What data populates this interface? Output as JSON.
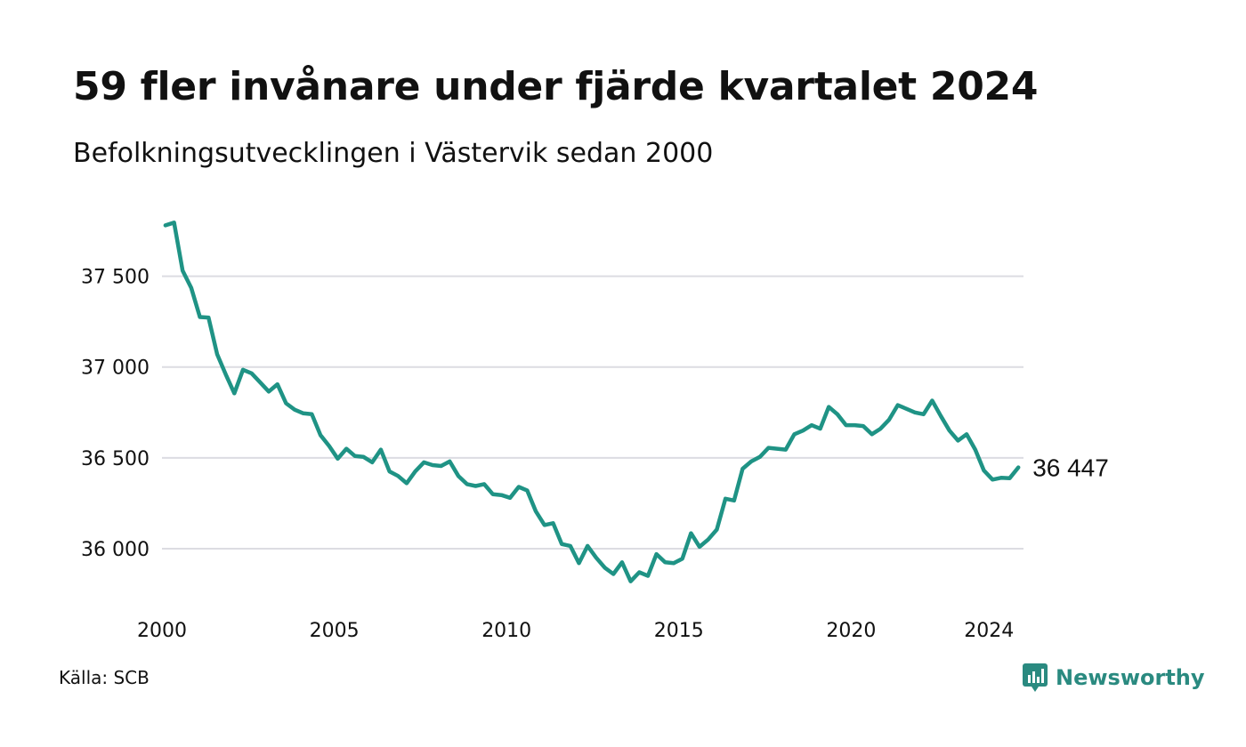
{
  "title": "59 fler invånare under fjärde kvartalet 2024",
  "subtitle": "Befolkningsutvecklingen i Västervik sedan 2000",
  "source": "Källa: SCB",
  "brand": {
    "name": "Newsworthy",
    "icon": "newsworthy-logo-icon",
    "color": "#2a8a80"
  },
  "chart_data": {
    "type": "line",
    "title": "59 fler invånare under fjärde kvartalet 2024",
    "subtitle": "Befolkningsutvecklingen i Västervik sedan 2000",
    "xlabel": "",
    "ylabel": "",
    "xlim": [
      2000,
      2025
    ],
    "ylim": [
      35750,
      37870
    ],
    "grid": "horizontal",
    "line_color": "#1f9385",
    "grid_color": "#dcdce2",
    "x_ticks": [
      {
        "value": 2000,
        "label": "2000"
      },
      {
        "value": 2005,
        "label": "2005"
      },
      {
        "value": 2010,
        "label": "2010"
      },
      {
        "value": 2015,
        "label": "2015"
      },
      {
        "value": 2020,
        "label": "2020"
      },
      {
        "value": 2024,
        "label": "2024"
      }
    ],
    "y_ticks": [
      {
        "value": 36000,
        "label": "36 000"
      },
      {
        "value": 36500,
        "label": "36 500"
      },
      {
        "value": 37000,
        "label": "37 000"
      },
      {
        "value": 37500,
        "label": "37 500"
      }
    ],
    "end_label": "36 447",
    "series": [
      {
        "values": [
          37780,
          37795,
          37530,
          37435,
          37275,
          37272,
          37070,
          36960,
          36855,
          36985,
          36965,
          36915,
          36865,
          36905,
          36800,
          36765,
          36745,
          36740,
          36625,
          36565,
          36495,
          36550,
          36510,
          36505,
          36475,
          36545,
          36425,
          36400,
          36360,
          36425,
          36475,
          36460,
          36455,
          36480,
          36400,
          36355,
          36345,
          36355,
          36300,
          36295,
          36280,
          36340,
          36320,
          36205,
          36130,
          36140,
          36025,
          36015,
          35920,
          36015,
          35950,
          35895,
          35860,
          35925,
          35820,
          35870,
          35850,
          35970,
          35925,
          35920,
          35945,
          36085,
          36010,
          36050,
          36105,
          36275,
          36265,
          36440,
          36480,
          36505,
          36555,
          36550,
          36545,
          36630,
          36650,
          36680,
          36660,
          36780,
          36740,
          36680,
          36680,
          36675,
          36630,
          36660,
          36710,
          36790,
          36770,
          36750,
          36740,
          36815,
          36730,
          36650,
          36595,
          36630,
          36545,
          36430,
          36380,
          36390,
          36388,
          36447
        ]
      }
    ]
  }
}
